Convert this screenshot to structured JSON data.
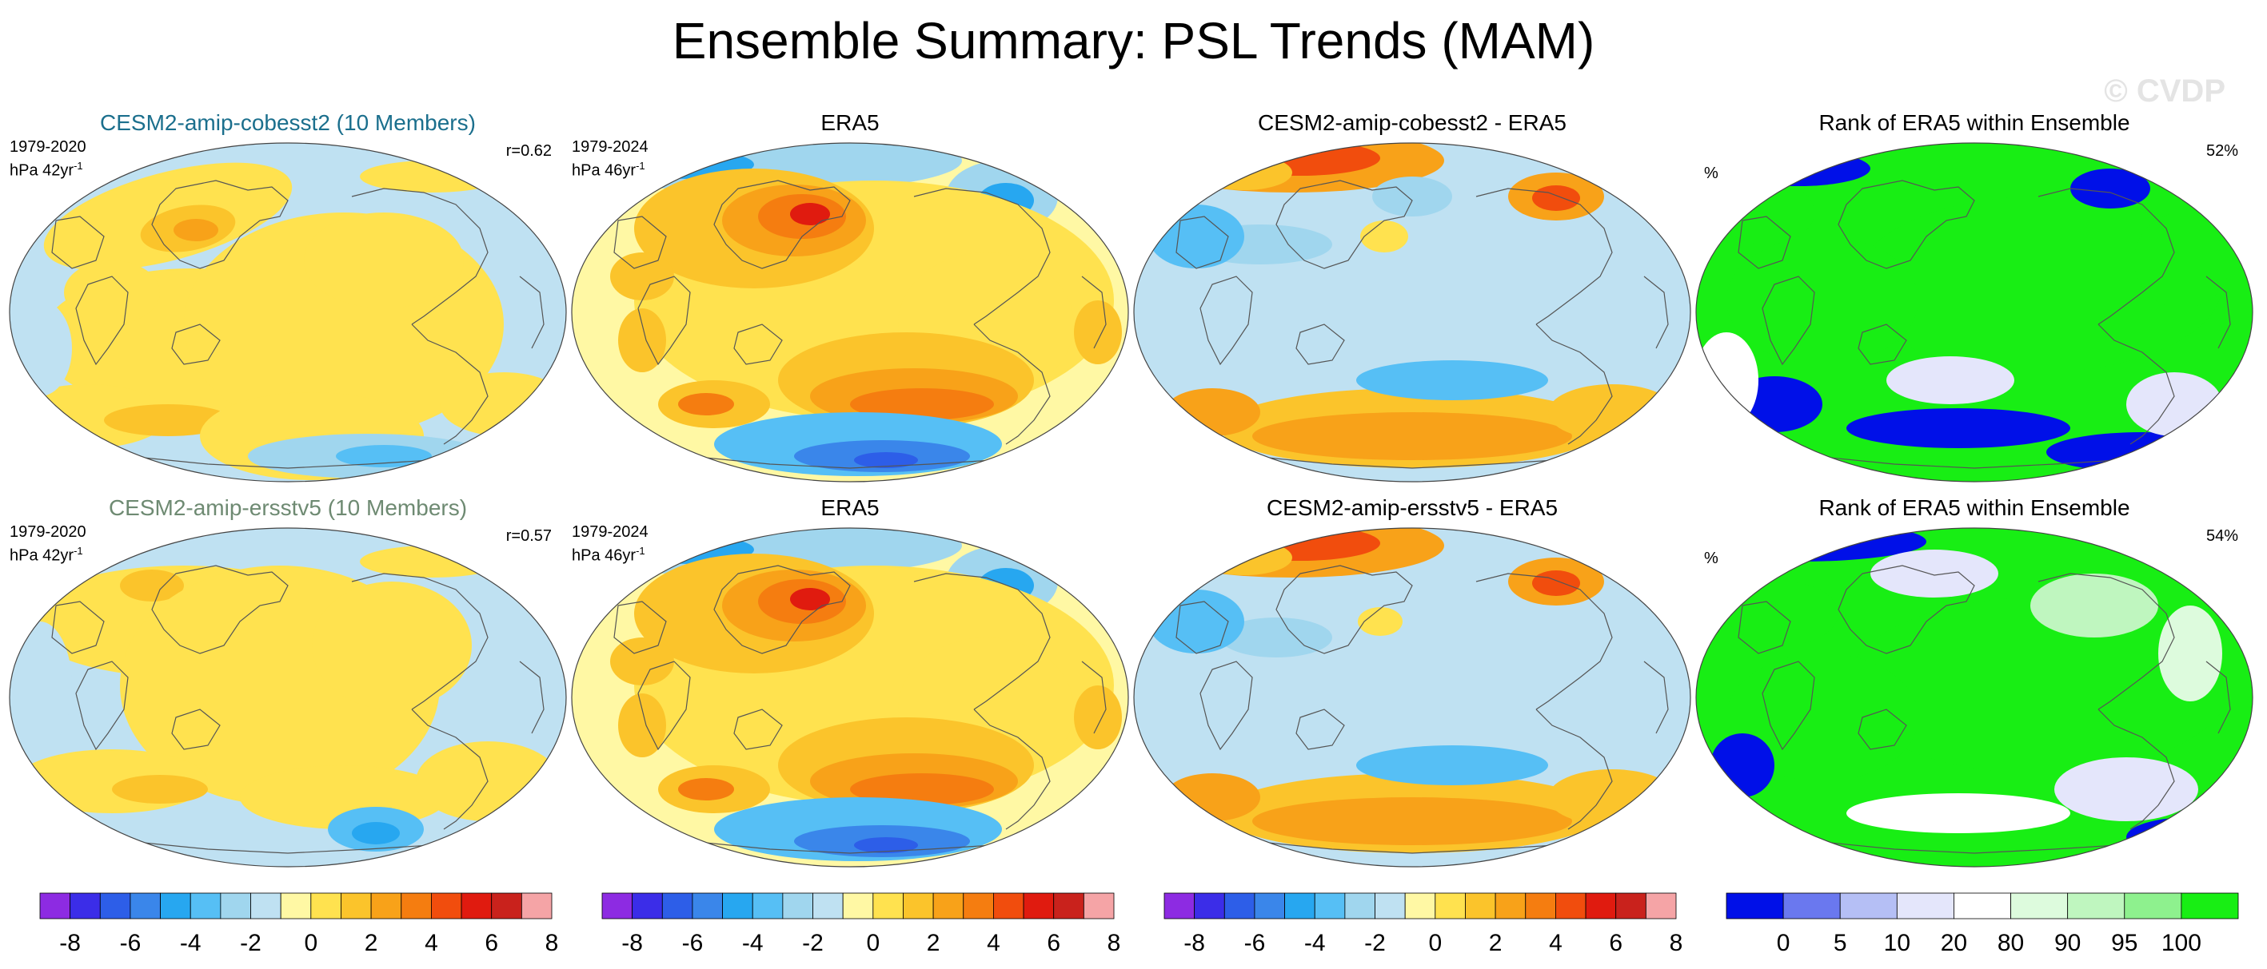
{
  "title": "Ensemble Summary: PSL Trends (MAM)",
  "watermark": "© CVDP",
  "colors": {
    "trend_scale": [
      "#8d2be2",
      "#3b2de8",
      "#2d5ee8",
      "#3a86ea",
      "#27a7f0",
      "#56bff5",
      "#a0d6ee",
      "#bfe1f2",
      "#fff8a4",
      "#ffe24f",
      "#fbc42b",
      "#f8a219",
      "#f57d10",
      "#f14d0d",
      "#e01b0f",
      "#c9221c",
      "#f5a4a6"
    ],
    "rank_scale": [
      "#0010e8",
      "#6a78ef",
      "#b5bff5",
      "#e4e6fb",
      "#ffffff",
      "#ddfbdd",
      "#bff6bf",
      "#8ef18e",
      "#18ee14"
    ],
    "coast": "#555555",
    "title_model1": "#1b6f8d",
    "title_model2": "#6e8a72"
  },
  "panels": [
    {
      "title": "CESM2-amip-cobesst2 (10 Members)",
      "period": "1979-2020",
      "units": "hPa 42yr",
      "units_sup": "-1",
      "corr": "r=0.62",
      "map": "model1_trend"
    },
    {
      "title": "ERA5",
      "period": "1979-2024",
      "units": "hPa 46yr",
      "units_sup": "-1",
      "map": "era5_trend"
    },
    {
      "title": "CESM2-amip-cobesst2 - ERA5",
      "map": "diff1"
    },
    {
      "title": "Rank of ERA5 within Ensemble",
      "pct_label": "%",
      "pct_value": "52%",
      "map": "rank1"
    },
    {
      "title": "CESM2-amip-ersstv5 (10 Members)",
      "period": "1979-2020",
      "units": "hPa 42yr",
      "units_sup": "-1",
      "corr": "r=0.57",
      "map": "model2_trend"
    },
    {
      "title": "ERA5",
      "period": "1979-2024",
      "units": "hPa 46yr",
      "units_sup": "-1",
      "map": "era5_trend"
    },
    {
      "title": "CESM2-amip-ersstv5 - ERA5",
      "map": "diff2"
    },
    {
      "title": "Rank of ERA5 within Ensemble",
      "pct_label": "%",
      "pct_value": "54%",
      "map": "rank2"
    }
  ],
  "colorbars": [
    {
      "scale": "trend",
      "ticks": [
        "-8",
        "-6",
        "-4",
        "-2",
        "0",
        "2",
        "4",
        "6",
        "8"
      ]
    },
    {
      "scale": "trend",
      "ticks": [
        "-8",
        "-6",
        "-4",
        "-2",
        "0",
        "2",
        "4",
        "6",
        "8"
      ]
    },
    {
      "scale": "trend",
      "ticks": [
        "-8",
        "-6",
        "-4",
        "-2",
        "0",
        "2",
        "4",
        "6",
        "8"
      ]
    },
    {
      "scale": "rank",
      "ticks": [
        "0",
        "5",
        "10",
        "20",
        "80",
        "90",
        "95",
        "100"
      ]
    }
  ],
  "chart_data": [
    {
      "type": "heatmap",
      "title": "CESM2-amip-cobesst2 (10 Members)",
      "field": "PSL trend, ensemble mean",
      "units": "hPa 42yr-1",
      "period": "1979-2020",
      "pattern_correlation": 0.62,
      "colorbar_ticks": [
        -8,
        -6,
        -4,
        -2,
        0,
        2,
        4,
        6,
        8
      ]
    },
    {
      "type": "heatmap",
      "title": "ERA5",
      "field": "PSL trend",
      "units": "hPa 46yr-1",
      "period": "1979-2024",
      "colorbar_ticks": [
        -8,
        -6,
        -4,
        -2,
        0,
        2,
        4,
        6,
        8
      ]
    },
    {
      "type": "heatmap",
      "title": "CESM2-amip-cobesst2 - ERA5",
      "field": "PSL trend difference",
      "colorbar_ticks": [
        -8,
        -6,
        -4,
        -2,
        0,
        2,
        4,
        6,
        8
      ]
    },
    {
      "type": "heatmap",
      "title": "Rank of ERA5 within Ensemble",
      "field": "rank (%)",
      "area_summary": "52%",
      "colorbar_ticks": [
        0,
        5,
        10,
        20,
        80,
        90,
        95,
        100
      ]
    },
    {
      "type": "heatmap",
      "title": "CESM2-amip-ersstv5 (10 Members)",
      "field": "PSL trend, ensemble mean",
      "units": "hPa 42yr-1",
      "period": "1979-2020",
      "pattern_correlation": 0.57,
      "colorbar_ticks": [
        -8,
        -6,
        -4,
        -2,
        0,
        2,
        4,
        6,
        8
      ]
    },
    {
      "type": "heatmap",
      "title": "ERA5",
      "field": "PSL trend",
      "units": "hPa 46yr-1",
      "period": "1979-2024",
      "colorbar_ticks": [
        -8,
        -6,
        -4,
        -2,
        0,
        2,
        4,
        6,
        8
      ]
    },
    {
      "type": "heatmap",
      "title": "CESM2-amip-ersstv5 - ERA5",
      "field": "PSL trend difference",
      "colorbar_ticks": [
        -8,
        -6,
        -4,
        -2,
        0,
        2,
        4,
        6,
        8
      ]
    },
    {
      "type": "heatmap",
      "title": "Rank of ERA5 within Ensemble",
      "field": "rank (%)",
      "area_summary": "54%",
      "colorbar_ticks": [
        0,
        5,
        10,
        20,
        80,
        90,
        95,
        100
      ]
    }
  ]
}
